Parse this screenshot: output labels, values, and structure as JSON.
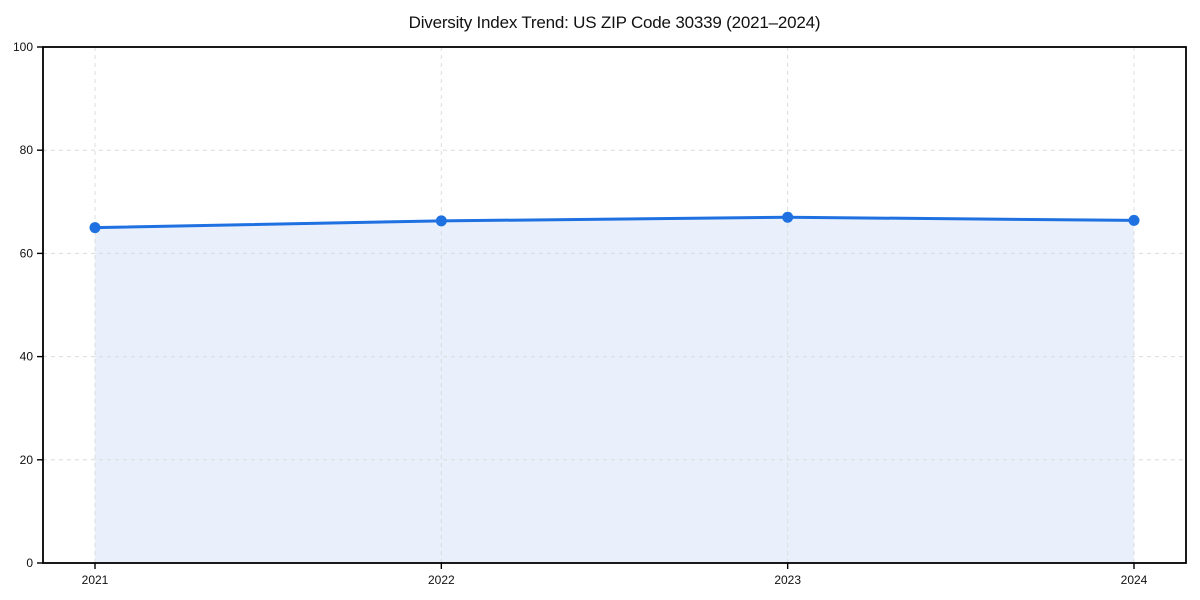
{
  "chart_data": {
    "type": "line",
    "title": "Diversity Index Trend: US ZIP Code 30339 (2021–2024)",
    "x": [
      2021,
      2022,
      2023,
      2024
    ],
    "xticks": [
      "2021",
      "2022",
      "2023",
      "2024"
    ],
    "series": [
      {
        "name": "Diversity Index",
        "values": [
          65.0,
          66.3,
          67.0,
          66.4
        ]
      }
    ],
    "xlabel": "",
    "ylabel": "",
    "ylim": [
      0,
      100
    ],
    "yticks": [
      0,
      20,
      40,
      60,
      80,
      100
    ],
    "grid": "dashed, both axes",
    "legend_position": "none",
    "area_fill": true,
    "markers": "circle",
    "colors": {
      "line": "#1f70e1",
      "marker": "#1f70e1",
      "fill": "#e9f0fb",
      "grid": "#dcdcdc",
      "spine": "#000000",
      "tick_text": "#111111",
      "background": "#ffffff"
    }
  }
}
